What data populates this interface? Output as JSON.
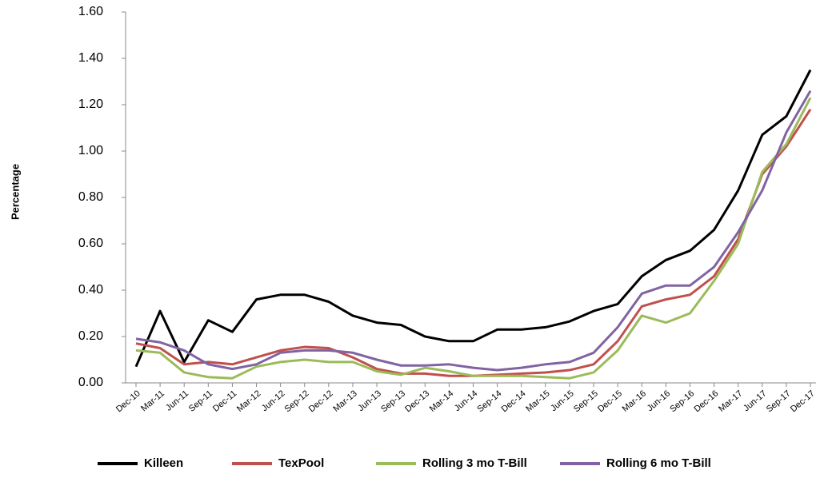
{
  "chart_data": {
    "type": "line",
    "y_label": "Percentage",
    "categories": [
      "Dec-10",
      "Mar-11",
      "Jun-11",
      "Sep-11",
      "Dec-11",
      "Mar-12",
      "Jun-12",
      "Sep-12",
      "Dec-12",
      "Mar-13",
      "Jun-13",
      "Sep-13",
      "Dec-13",
      "Mar-14",
      "Jun-14",
      "Sep-14",
      "Dec-14",
      "Mar-15",
      "Jun-15",
      "Sep-15",
      "Dec-15",
      "Mar-16",
      "Jun-16",
      "Sep-16",
      "Dec-16",
      "Mar-17",
      "Jun-17",
      "Sep-17",
      "Dec-17"
    ],
    "series": [
      {
        "name": "Killeen",
        "color": "#000000",
        "values": [
          0.07,
          0.31,
          0.09,
          0.27,
          0.22,
          0.36,
          0.38,
          0.38,
          0.35,
          0.29,
          0.26,
          0.25,
          0.2,
          0.18,
          0.18,
          0.23,
          0.23,
          0.24,
          0.265,
          0.31,
          0.34,
          0.46,
          0.53,
          0.57,
          0.66,
          0.83,
          1.07,
          1.15,
          1.35
        ]
      },
      {
        "name": "TexPool",
        "color": "#c0504d",
        "values": [
          0.17,
          0.15,
          0.08,
          0.09,
          0.08,
          0.11,
          0.14,
          0.155,
          0.15,
          0.11,
          0.06,
          0.04,
          0.04,
          0.03,
          0.03,
          0.035,
          0.04,
          0.045,
          0.055,
          0.08,
          0.18,
          0.33,
          0.36,
          0.38,
          0.46,
          0.62,
          0.9,
          1.02,
          1.18
        ]
      },
      {
        "name": "Rolling 3 mo T-Bill",
        "color": "#9bbb59",
        "values": [
          0.14,
          0.13,
          0.045,
          0.025,
          0.02,
          0.07,
          0.09,
          0.1,
          0.09,
          0.09,
          0.05,
          0.035,
          0.065,
          0.05,
          0.03,
          0.03,
          0.03,
          0.025,
          0.02,
          0.045,
          0.14,
          0.29,
          0.26,
          0.3,
          0.44,
          0.6,
          0.91,
          1.03,
          1.23
        ]
      },
      {
        "name": "Rolling 6 mo T-Bill",
        "color": "#8064a2",
        "values": [
          0.19,
          0.175,
          0.14,
          0.08,
          0.06,
          0.08,
          0.13,
          0.14,
          0.14,
          0.13,
          0.1,
          0.075,
          0.075,
          0.08,
          0.065,
          0.055,
          0.065,
          0.08,
          0.09,
          0.13,
          0.24,
          0.385,
          0.42,
          0.42,
          0.5,
          0.65,
          0.83,
          1.08,
          1.26
        ]
      }
    ],
    "ylim": [
      0,
      1.6
    ],
    "yticks": [
      {
        "value": 0,
        "label": "0.00"
      },
      {
        "value": 0.2,
        "label": "0.20"
      },
      {
        "value": 0.4,
        "label": "0.40"
      },
      {
        "value": 0.6,
        "label": "0.60"
      },
      {
        "value": 0.8,
        "label": "0.80"
      },
      {
        "value": 1.0,
        "label": "1.00"
      },
      {
        "value": 1.2,
        "label": "1.20"
      },
      {
        "value": 1.4,
        "label": "1.40"
      },
      {
        "value": 1.6,
        "label": "1.60"
      }
    ],
    "legend": "bottom"
  }
}
